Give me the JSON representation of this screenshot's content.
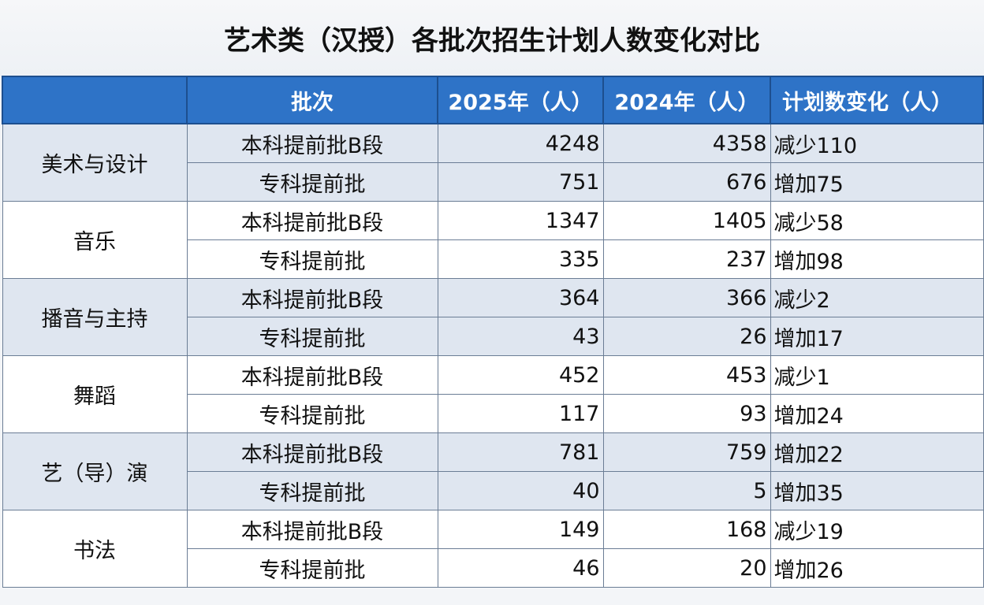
{
  "title": "艺术类（汉授）各批次招生计划人数变化对比",
  "headers": [
    "",
    "批次",
    "2025年（人）",
    "2024年（人）",
    "计划数变化（人）"
  ],
  "groups": [
    {
      "category": "美术与设计",
      "rows": [
        {
          "batch": "本科提前批B段",
          "y2025": "4248",
          "y2024": "4358",
          "change": "减少110"
        },
        {
          "batch": "专科提前批",
          "y2025": "751",
          "y2024": "676",
          "change": "增加75"
        }
      ]
    },
    {
      "category": "音乐",
      "rows": [
        {
          "batch": "本科提前批B段",
          "y2025": "1347",
          "y2024": "1405",
          "change": "减少58"
        },
        {
          "batch": "专科提前批",
          "y2025": "335",
          "y2024": "237",
          "change": "增加98"
        }
      ]
    },
    {
      "category": "播音与主持",
      "rows": [
        {
          "batch": "本科提前批B段",
          "y2025": "364",
          "y2024": "366",
          "change": "减少2"
        },
        {
          "batch": "专科提前批",
          "y2025": "43",
          "y2024": "26",
          "change": "增加17"
        }
      ]
    },
    {
      "category": "舞蹈",
      "rows": [
        {
          "batch": "本科提前批B段",
          "y2025": "452",
          "y2024": "453",
          "change": "减少1"
        },
        {
          "batch": "专科提前批",
          "y2025": "117",
          "y2024": "93",
          "change": "增加24"
        }
      ]
    },
    {
      "category": "艺（导）演",
      "rows": [
        {
          "batch": "本科提前批B段",
          "y2025": "781",
          "y2024": "759",
          "change": "增加22"
        },
        {
          "batch": "专科提前批",
          "y2025": "40",
          "y2024": "5",
          "change": "增加35"
        }
      ]
    },
    {
      "category": "书法",
      "rows": [
        {
          "batch": "本科提前批B段",
          "y2025": "149",
          "y2024": "168",
          "change": "减少19"
        },
        {
          "batch": "专科提前批",
          "y2025": "46",
          "y2024": "20",
          "change": "增加26"
        }
      ]
    }
  ],
  "colors": {
    "header": "#2e73c7",
    "shade": "#dfe6f0",
    "plain": "#ffffff"
  }
}
